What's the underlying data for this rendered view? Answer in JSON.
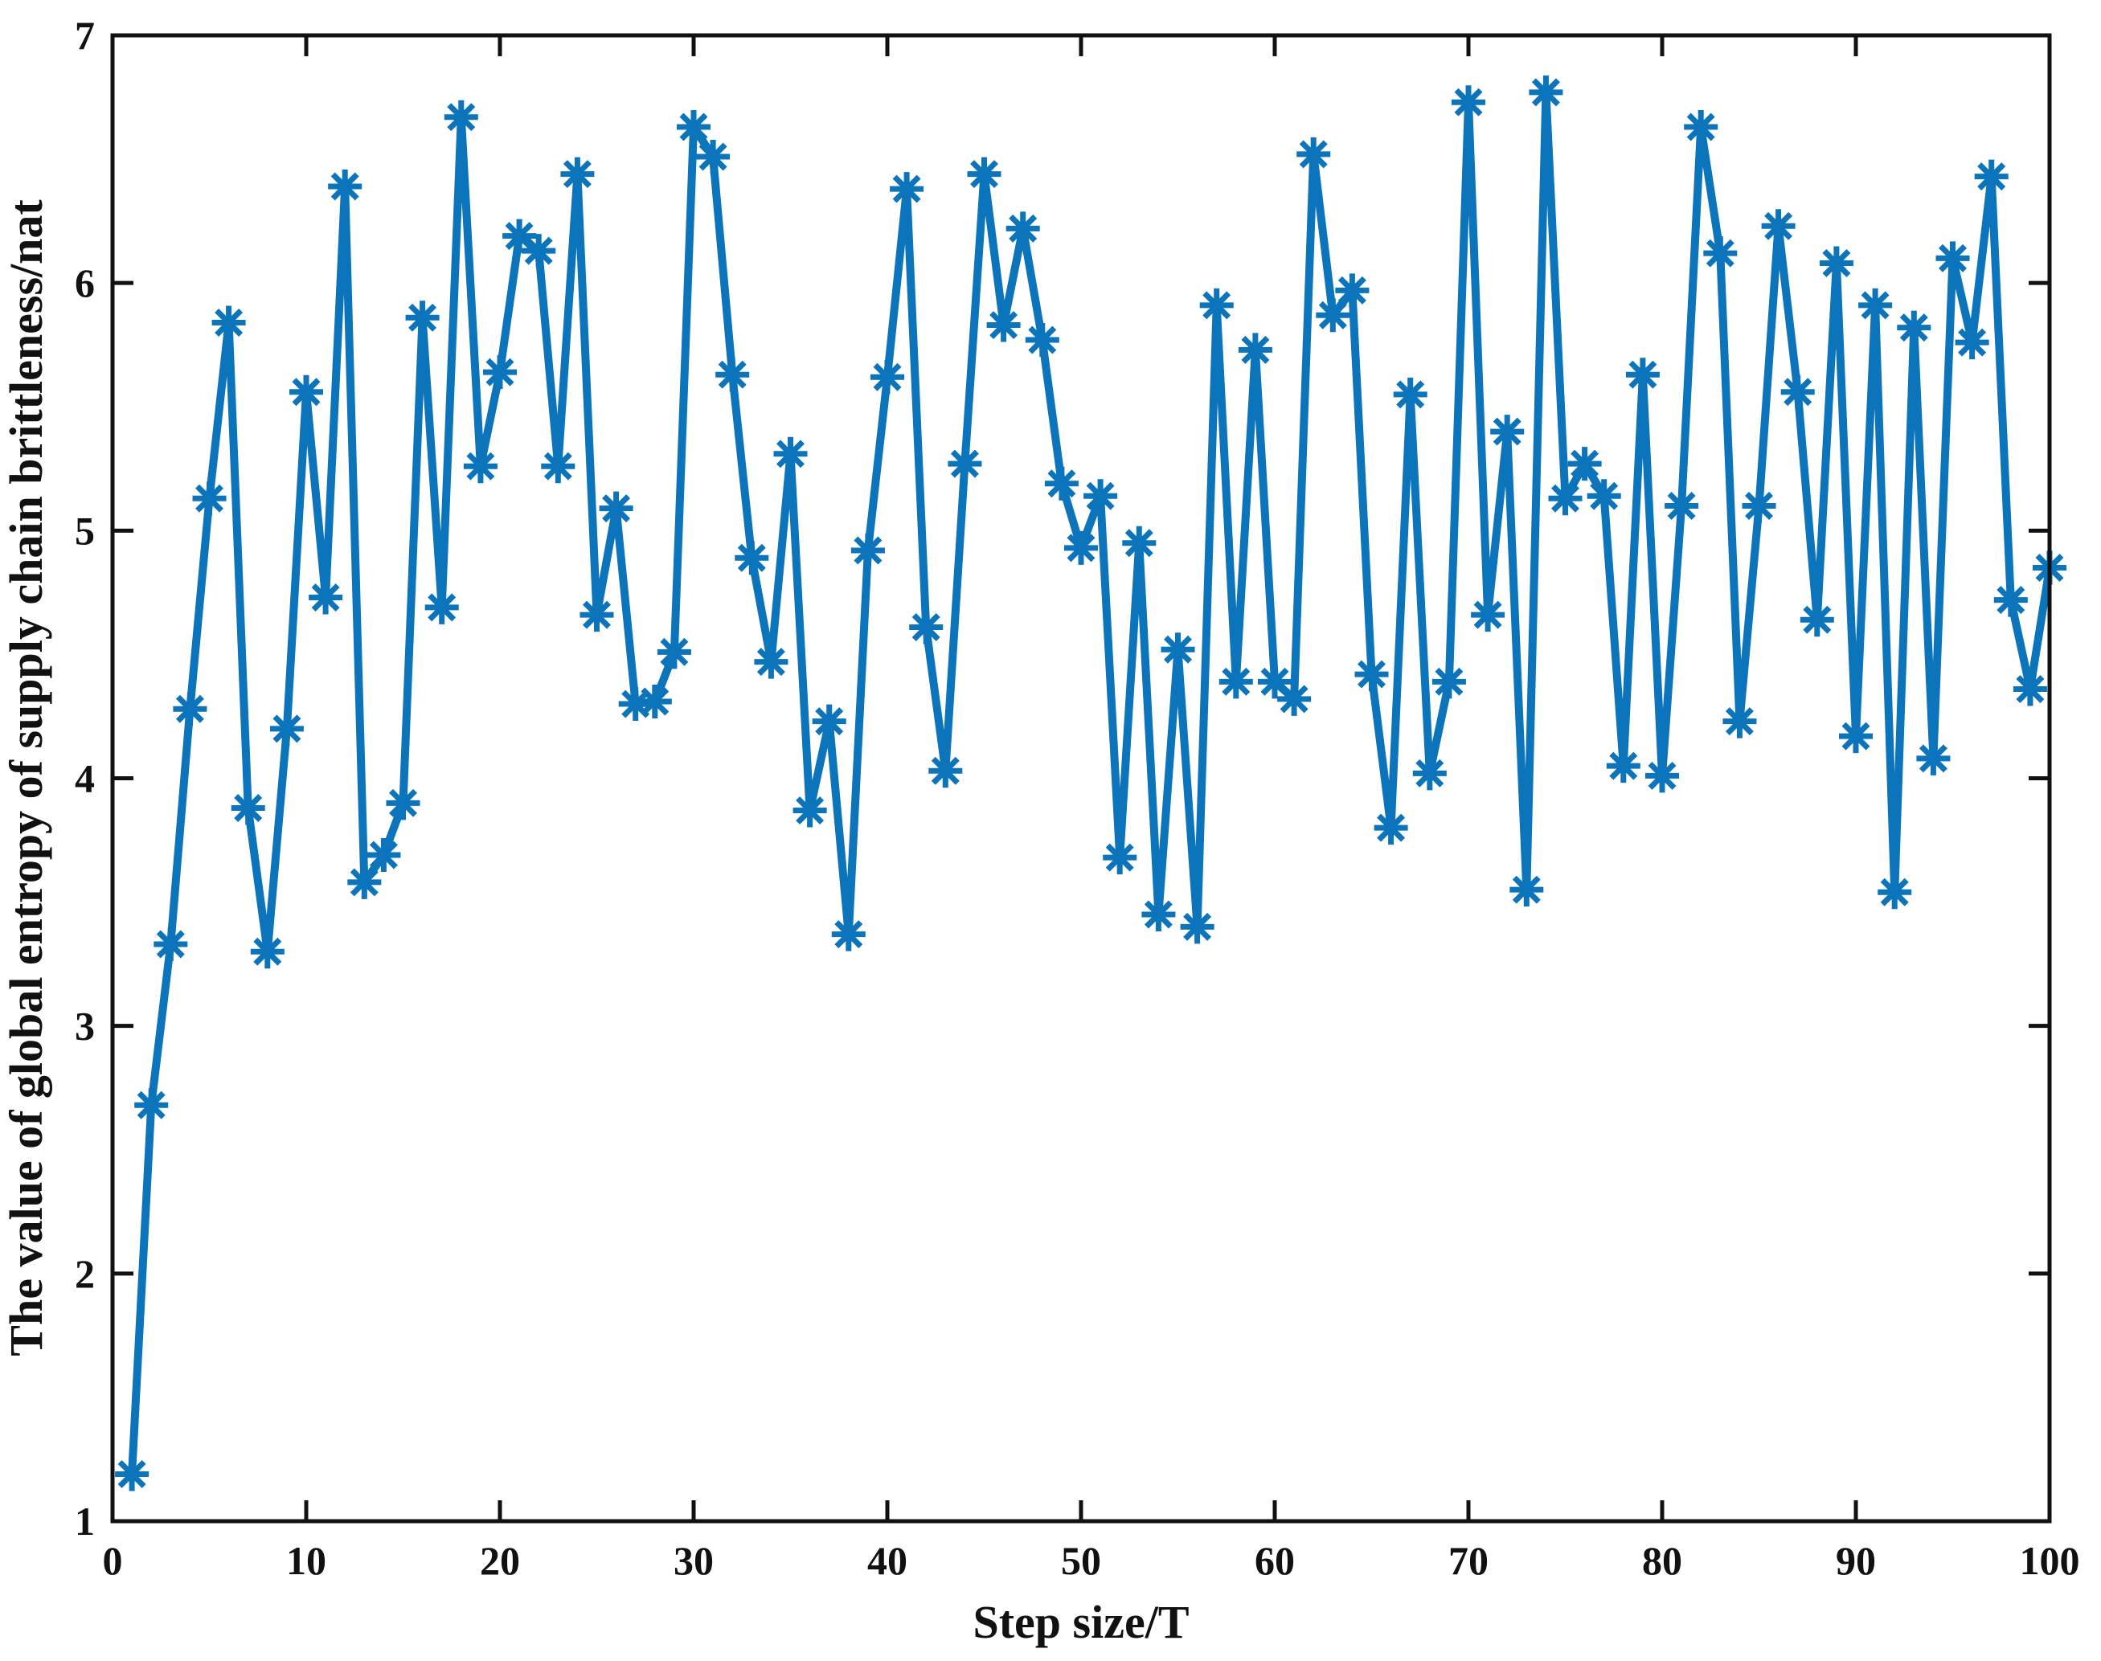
{
  "page": {
    "background": "#ffffff",
    "axis_color": "#111111",
    "line_color": "#0c74ba"
  },
  "chart_data": {
    "type": "line",
    "title": "",
    "xlabel": "Step size/T",
    "ylabel": "The value of global entropy of supply chain brittleness/nat",
    "x_range": [
      0,
      100
    ],
    "y_range": [
      1,
      7
    ],
    "x_ticks": [
      0,
      10,
      20,
      30,
      40,
      50,
      60,
      70,
      80,
      90,
      100
    ],
    "y_ticks": [
      1,
      2,
      3,
      4,
      5,
      6,
      7
    ],
    "grid": false,
    "legend_visible": false,
    "marker": "asterisk",
    "series": [
      {
        "name": "Global entropy of supply chain brittleness",
        "x": [
          1,
          2,
          3,
          4,
          5,
          6,
          7,
          8,
          9,
          10,
          11,
          12,
          13,
          14,
          15,
          16,
          17,
          18,
          19,
          20,
          21,
          22,
          23,
          24,
          25,
          26,
          27,
          28,
          29,
          30,
          31,
          32,
          33,
          34,
          35,
          36,
          37,
          38,
          39,
          40,
          41,
          42,
          43,
          44,
          45,
          46,
          47,
          48,
          49,
          50,
          51,
          52,
          53,
          54,
          55,
          56,
          57,
          58,
          59,
          60,
          61,
          62,
          63,
          64,
          65,
          66,
          67,
          68,
          69,
          70,
          71,
          72,
          73,
          74,
          75,
          76,
          77,
          78,
          79,
          80,
          81,
          82,
          83,
          84,
          85,
          86,
          87,
          88,
          89,
          90,
          91,
          92,
          93,
          94,
          95,
          96,
          97,
          98,
          99,
          100
        ],
        "y": [
          1.19,
          2.68,
          3.33,
          4.28,
          5.13,
          5.84,
          3.88,
          3.3,
          4.2,
          5.56,
          4.73,
          6.39,
          3.58,
          3.69,
          3.9,
          5.86,
          4.69,
          6.67,
          5.26,
          5.64,
          6.19,
          6.13,
          5.26,
          6.44,
          4.66,
          5.09,
          4.3,
          4.31,
          4.51,
          6.63,
          6.51,
          5.63,
          4.89,
          4.47,
          5.31,
          3.87,
          4.23,
          3.37,
          4.92,
          5.62,
          6.38,
          4.61,
          4.03,
          5.27,
          6.44,
          5.83,
          6.22,
          5.77,
          5.19,
          4.93,
          5.14,
          3.68,
          4.95,
          3.45,
          4.52,
          3.4,
          5.91,
          4.39,
          5.73,
          4.39,
          4.32,
          6.52,
          5.87,
          5.97,
          4.42,
          3.8,
          5.55,
          4.02,
          4.39,
          6.73,
          4.66,
          5.4,
          3.55,
          6.77,
          5.13,
          5.27,
          5.14,
          4.05,
          5.63,
          4.01,
          5.1,
          6.63,
          6.12,
          4.23,
          5.1,
          6.23,
          5.56,
          4.64,
          6.08,
          4.17,
          5.91,
          3.54,
          5.82,
          4.08,
          6.1,
          5.76,
          6.43,
          4.72,
          4.36,
          4.85
        ]
      }
    ]
  }
}
